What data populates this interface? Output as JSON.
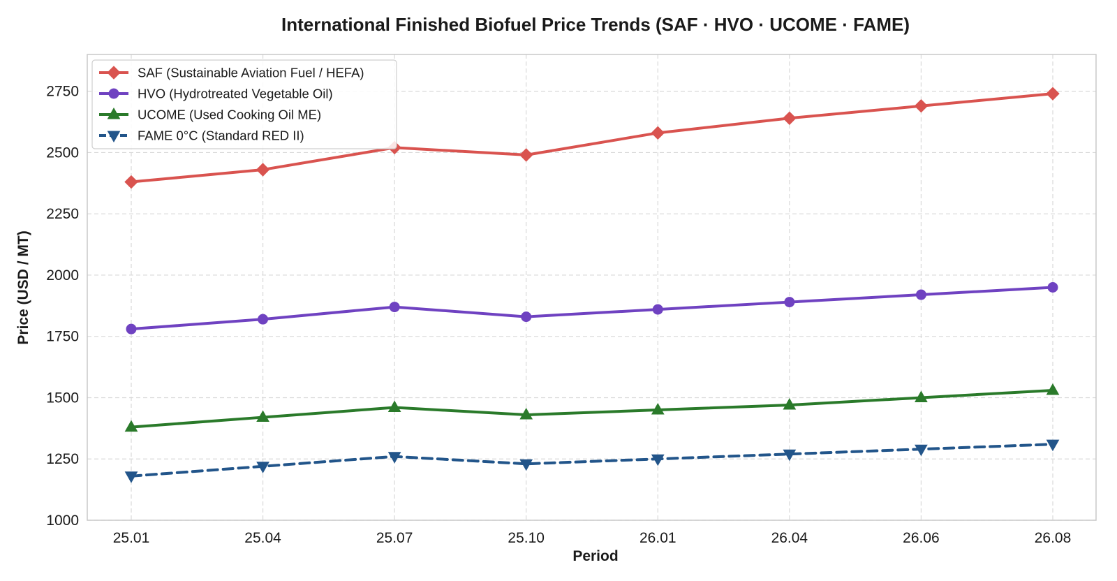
{
  "chart_data": {
    "type": "line",
    "title": "International Finished Biofuel Price Trends (SAF · HVO · UCOME · FAME)",
    "xlabel": "Period",
    "ylabel": "Price (USD / MT)",
    "categories": [
      "25.01",
      "25.04",
      "25.07",
      "25.10",
      "26.01",
      "26.04",
      "26.06",
      "26.08"
    ],
    "ylim": [
      1000,
      2900
    ],
    "yticks": [
      1000,
      1250,
      1500,
      1750,
      2000,
      2250,
      2500,
      2750
    ],
    "grid": true,
    "legend_position": "top-left",
    "series": [
      {
        "name": "SAF (Sustainable Aviation Fuel / HEFA)",
        "color": "#d9534f",
        "marker": "diamond",
        "line": "solid",
        "values": [
          2380,
          2430,
          2520,
          2490,
          2580,
          2640,
          2690,
          2740
        ]
      },
      {
        "name": "HVO (Hydrotreated Vegetable Oil)",
        "color": "#6f42c1",
        "marker": "circle",
        "line": "solid",
        "values": [
          1780,
          1820,
          1870,
          1830,
          1860,
          1890,
          1920,
          1950
        ]
      },
      {
        "name": "UCOME (Used Cooking Oil ME)",
        "color": "#2a7a2a",
        "marker": "triangle-up",
        "line": "solid",
        "values": [
          1380,
          1420,
          1460,
          1430,
          1450,
          1470,
          1500,
          1530
        ]
      },
      {
        "name": "FAME 0°C (Standard RED II)",
        "color": "#22558a",
        "marker": "triangle-down",
        "line": "dashed",
        "values": [
          1180,
          1220,
          1260,
          1230,
          1250,
          1270,
          1290,
          1310
        ]
      }
    ]
  }
}
